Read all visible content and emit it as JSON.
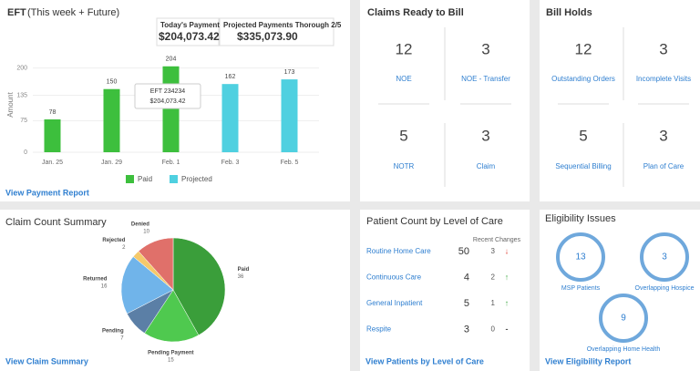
{
  "chart_data": [
    {
      "type": "bar",
      "y_label": "Amount",
      "categories": [
        "Jan. 25",
        "Jan. 29",
        "Feb. 1",
        "Feb. 3",
        "Feb. 5"
      ],
      "series": [
        {
          "name": "Paid",
          "color": "#3dbf3d",
          "values": [
            78,
            150,
            204,
            null,
            null
          ]
        },
        {
          "name": "Projected",
          "color": "#4fd0e0",
          "values": [
            null,
            null,
            null,
            162,
            173
          ]
        }
      ],
      "ylim": [
        0,
        210
      ],
      "yticks": [
        0,
        75,
        135,
        200
      ],
      "grid": true,
      "legend": "bottom"
    },
    {
      "type": "pie",
      "title": "Claim Count Summary",
      "categories": [
        "Paid",
        "Pending Payment",
        "Pending",
        "Returned",
        "Rejected",
        "Denied"
      ],
      "values": [
        36,
        15,
        7,
        16,
        2,
        10
      ],
      "colors": [
        "#3a9e3a",
        "#4fc94f",
        "#5b7fa6",
        "#70b4ea",
        "#f5c96b",
        "#e0706a"
      ]
    }
  ],
  "eft": {
    "title": "EFT",
    "subtitle": "(This week + Future)",
    "today_label": "Today's Payment",
    "today_value": "$204,073.42",
    "projected_label": "Projected Payments Thorough 2/5",
    "projected_value": "$335,073.90",
    "tooltip_title": "EFT 234234",
    "tooltip_value": "$204,073.42",
    "link": "View Payment Report"
  },
  "claims_ready": {
    "title": "Claims Ready to Bill",
    "tiles": [
      {
        "count": "12",
        "label": "NOE"
      },
      {
        "count": "3",
        "label": "NOE - Transfer"
      },
      {
        "count": "5",
        "label": "NOTR"
      },
      {
        "count": "3",
        "label": "Claim"
      }
    ]
  },
  "bill_holds": {
    "title": "Bill Holds",
    "tiles": [
      {
        "count": "12",
        "label": "Outstanding Orders"
      },
      {
        "count": "3",
        "label": "Incomplete Visits"
      },
      {
        "count": "5",
        "label": "Sequential Billing"
      },
      {
        "count": "3",
        "label": "Plan of Care"
      }
    ]
  },
  "claim_summary": {
    "link": "View Claim Summary"
  },
  "patient_count": {
    "title": "Patient Count by Level of Care",
    "changes_header": "Recent Changes",
    "rows": [
      {
        "name": "Routine Home Care",
        "count": "50",
        "change": "3",
        "trend": "↓"
      },
      {
        "name": "Continuous Care",
        "count": "4",
        "change": "2",
        "trend": "↑"
      },
      {
        "name": "General Inpatient",
        "count": "5",
        "change": "1",
        "trend": "↑"
      },
      {
        "name": "Respite",
        "count": "3",
        "change": "0",
        "trend": "-"
      }
    ],
    "link": "View Patients by Level of Care"
  },
  "eligibility": {
    "title": "Eligibility Issues",
    "items": [
      {
        "count": "13",
        "label": "MSP Patients"
      },
      {
        "count": "3",
        "label": "Overlapping Hospice"
      },
      {
        "count": "9",
        "label": "Overlapping Home Health"
      }
    ],
    "link": "View Eligibility Report"
  }
}
